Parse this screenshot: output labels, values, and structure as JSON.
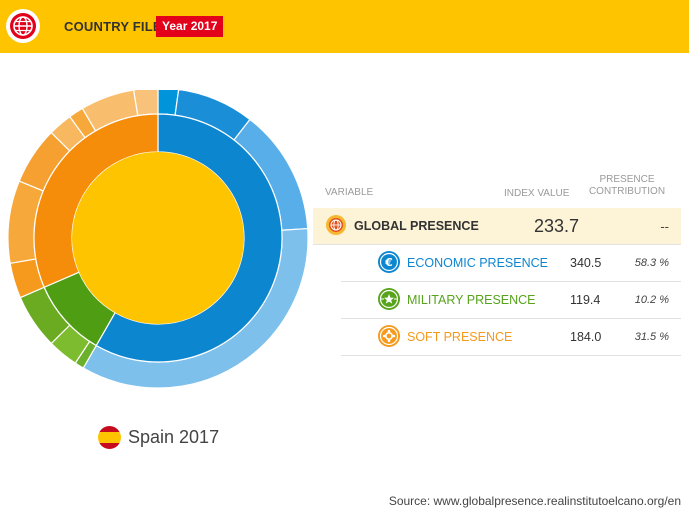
{
  "header": {
    "title": "COUNTRY FILE",
    "year_badge": "Year 2017"
  },
  "country": {
    "label": "Spain 2017"
  },
  "table": {
    "col_variable": "VARIABLE",
    "col_index": "INDEX VALUE",
    "col_contribution": "PRESENCE CONTRIBUTION",
    "rows": [
      {
        "name": "GLOBAL PRESENCE",
        "index": "233.7",
        "contribution": "--",
        "color": "#333333",
        "icon": "globe-icon"
      },
      {
        "name": "ECONOMIC PRESENCE",
        "index": "340.5",
        "contribution": "58.3 %",
        "color": "#0d86d0",
        "icon": "euro-icon"
      },
      {
        "name": "MILITARY PRESENCE",
        "index": "119.4",
        "contribution": "10.2 %",
        "color": "#57a31b",
        "icon": "star-icon"
      },
      {
        "name": "SOFT PRESENCE",
        "index": "184.0",
        "contribution": "31.5 %",
        "color": "#f59a1c",
        "icon": "gear-icon"
      }
    ]
  },
  "source": "Source: www.globalpresence.realinstitutoelcano.org/en",
  "colors": {
    "accent": "#ffc400",
    "badge": "#e3001b",
    "economic": "#0d86d0",
    "military": "#57a31b",
    "soft": "#f59a1c"
  },
  "chart_data": {
    "type": "pie",
    "center_value": 233.7,
    "inner_ring": [
      {
        "name": "ECONOMIC PRESENCE",
        "share": 58.3
      },
      {
        "name": "MILITARY PRESENCE",
        "share": 10.2
      },
      {
        "name": "SOFT PRESENCE",
        "share": 31.5
      }
    ],
    "outer_ring_shares": [
      2.2,
      8.3,
      13.5,
      34.3,
      1.0,
      3.3,
      5.9,
      3.8,
      8.9,
      6.2,
      2.6,
      1.6,
      5.8,
      2.6
    ]
  }
}
